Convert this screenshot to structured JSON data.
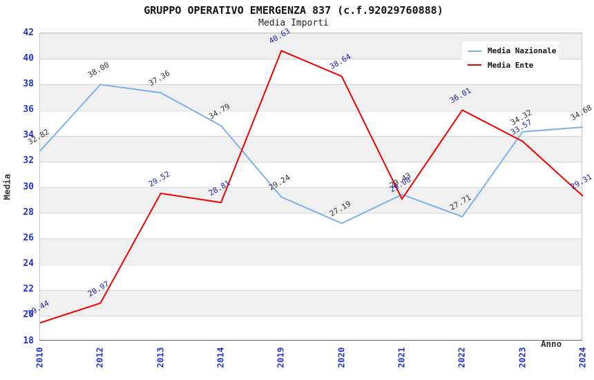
{
  "header": {
    "title": "GRUPPO OPERATIVO EMERGENZA 837 (c.f.92029760888)",
    "subtitle": "Media Importi"
  },
  "axes": {
    "y_label": "Media",
    "x_label": "Anno",
    "tick_color": "#2233cc"
  },
  "legend": {
    "position": "top-right",
    "items": [
      {
        "label": "Media Nazionale",
        "color": "#7cb0e8"
      },
      {
        "label": "Media Ente",
        "color": "#ee0000"
      }
    ]
  },
  "chart_data": {
    "type": "line",
    "title": "GRUPPO OPERATIVO EMERGENZA 837 (c.f.92029760888)",
    "subtitle": "Media Importi",
    "xlabel": "Anno",
    "ylabel": "Media",
    "categories": [
      "2010",
      "2012",
      "2013",
      "2014",
      "2019",
      "2020",
      "2021",
      "2022",
      "2023",
      "2024"
    ],
    "series": [
      {
        "name": "Media Nazionale",
        "color": "#7cb0e8",
        "label_color": "#333333",
        "values": [
          32.82,
          38.0,
          37.36,
          34.79,
          29.24,
          27.19,
          29.43,
          27.71,
          34.32,
          34.68
        ]
      },
      {
        "name": "Media Ente",
        "color": "#ee0000",
        "label_color": "#2222aa",
        "values": [
          19.44,
          20.97,
          29.52,
          28.81,
          40.63,
          38.64,
          29.08,
          36.01,
          33.57,
          29.31
        ]
      }
    ],
    "ylim": [
      18,
      42
    ],
    "yticks": [
      18,
      20,
      22,
      24,
      26,
      28,
      30,
      32,
      34,
      36,
      38,
      40,
      42
    ],
    "grid": "horizontal gridlines with alternating gray/white bands every 2 units",
    "band_color": "#f0f0f0",
    "legend_position": "top-right",
    "value_label_rotation_deg": -30,
    "xtick_rotation_deg": -90
  }
}
